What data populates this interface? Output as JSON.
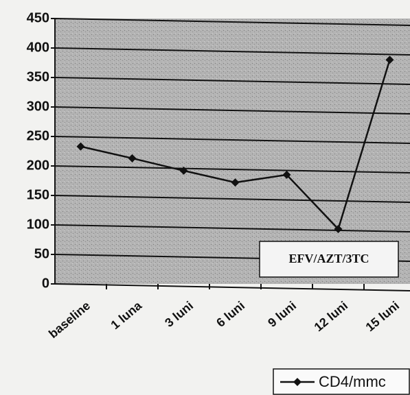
{
  "chart_data": {
    "type": "line",
    "categories": [
      "baseline",
      "1 luna",
      "3 luni",
      "6 luni",
      "9 luni",
      "12 luni",
      "15 luni"
    ],
    "series": [
      {
        "name": "CD4/mmc",
        "color": "#111111",
        "values": [
          233,
          213,
          192,
          172,
          185,
          93,
          380
        ]
      }
    ],
    "ylim": [
      0,
      450
    ],
    "yticks": [
      0,
      50,
      100,
      150,
      200,
      250,
      300,
      350,
      400,
      450
    ],
    "grid": true,
    "annotation": "EFV/AZT/3TC",
    "legend": "bottom-right"
  }
}
